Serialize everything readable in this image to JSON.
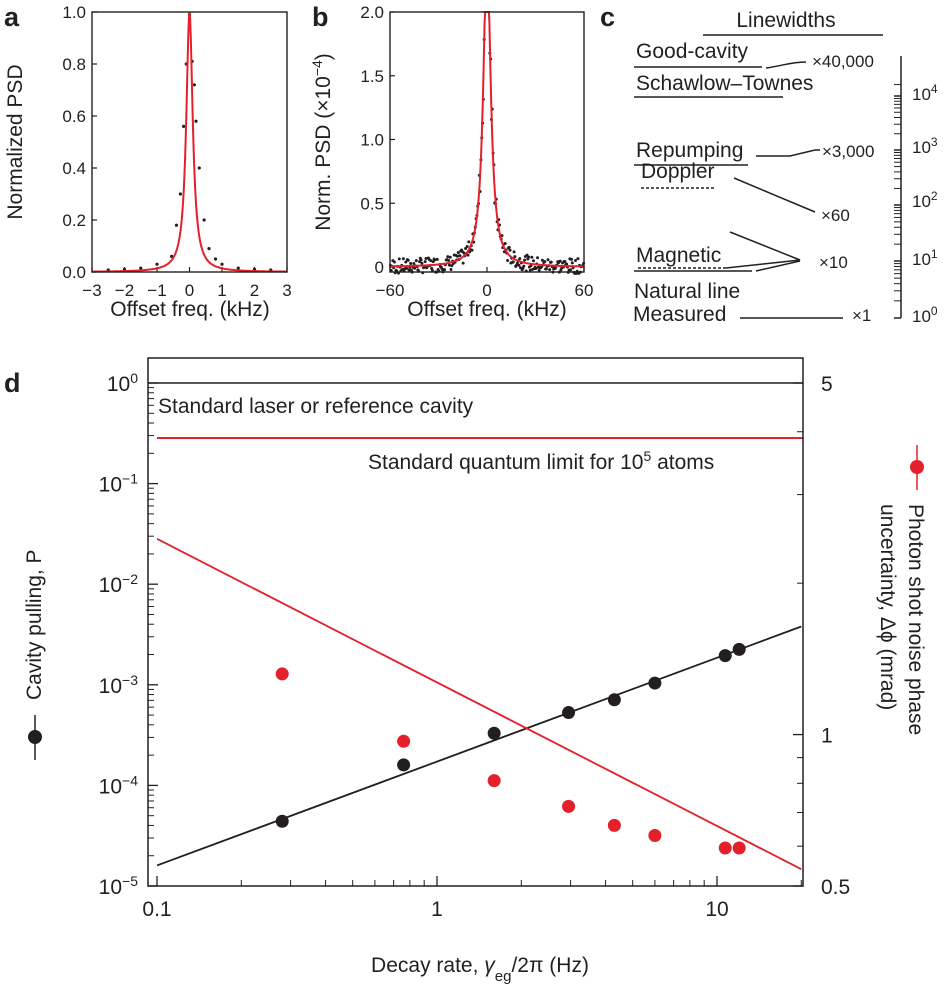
{
  "panel_labels": {
    "a": "a",
    "b": "b",
    "c": "c",
    "d": "d"
  },
  "colors": {
    "fit": "#e4202a",
    "data": "#231f20"
  },
  "chart_data": [
    {
      "type": "line",
      "panel": "a",
      "xlabel": "Offset freq. (kHz)",
      "ylabel": "Normalized PSD",
      "xlim": [
        -3,
        3
      ],
      "ylim": [
        0,
        1.0
      ],
      "xticks": [
        "−3",
        "−2",
        "−1",
        "0",
        "1",
        "2",
        "3"
      ],
      "yticks": [
        "0.0",
        "0.2",
        "0.4",
        "0.6",
        "0.8",
        "1.0"
      ],
      "series": [
        {
          "kind": "points",
          "x": [
            -0.55,
            -0.4,
            -0.28,
            -0.18,
            -0.1,
            0.0,
            0.08,
            0.15,
            0.2,
            0.3,
            0.45,
            0.6,
            0.8,
            1.0,
            1.5,
            -1.0,
            -1.5,
            -2.0,
            2.0,
            -2.5,
            2.5
          ],
          "y": [
            0.06,
            0.18,
            0.3,
            0.56,
            0.8,
            0.99,
            0.81,
            0.72,
            0.58,
            0.4,
            0.2,
            0.09,
            0.05,
            0.03,
            0.015,
            0.03,
            0.015,
            0.01,
            0.01,
            0.008,
            0.008
          ]
        },
        {
          "kind": "fit",
          "shape": "lorentzian",
          "center": 0,
          "fwhm": 0.24,
          "peak": 1.0
        }
      ]
    },
    {
      "type": "line",
      "panel": "b",
      "xlabel": "Offset freq. (kHz)",
      "ylabel": "Norm. PSD (×10",
      "ylabel_sup": "−4",
      "ylabel_end": ")",
      "xlim": [
        -60,
        60
      ],
      "ylim": [
        0,
        2.0
      ],
      "xticks": [
        "−60",
        "0",
        "60"
      ],
      "yticks": [
        "0",
        "0.5",
        "1.0",
        "1.5",
        "2.0"
      ],
      "series": [
        {
          "kind": "points",
          "noisy_lorentzian": true,
          "center": 0,
          "fwhm": 5.4,
          "peak": 2.5,
          "n": 240
        },
        {
          "kind": "fit",
          "shape": "lorentzian",
          "center": 0,
          "fwhm": 5.4,
          "peak": 2.5
        }
      ]
    },
    {
      "type": "diagram",
      "panel": "c",
      "title": "Linewidths",
      "items": [
        "Good-cavity",
        "Schawlow–Townes",
        "Repumping",
        "Doppler",
        "Magnetic",
        "Natural line",
        "Measured"
      ],
      "ratios": [
        "×40,000",
        "×3,000",
        "×60",
        "×10",
        "×1"
      ],
      "axis_ticks": [
        "10",
        "10",
        "10",
        "10",
        "10"
      ],
      "axis_exps": [
        "4",
        "3",
        "2",
        "1",
        "0"
      ]
    },
    {
      "type": "scatter",
      "panel": "d",
      "xlabel_pre": "Decay rate, ",
      "xlabel_sym": "γ",
      "xlabel_sub": "eg",
      "xlabel_post": "/2π (Hz)",
      "ylabel_left": "Cavity pulling, P",
      "ylabel_right_1": "Photon shot noise phase",
      "ylabel_right_2": "uncertainty, Δϕ (mrad)",
      "x_scale": "log",
      "xlim": [
        0.1,
        20
      ],
      "y_left_scale": "log",
      "y_left_lim": [
        1e-05,
        1
      ],
      "y_right_scale": "log",
      "y_right_lim": [
        0.5,
        5
      ],
      "xticks": [
        "0.1",
        "1",
        "10"
      ],
      "yticks_left_base": "10",
      "yticks_left_exp": [
        "−5",
        "−4",
        "−3",
        "−2",
        "−1",
        "0"
      ],
      "yticks_right": [
        "0.5",
        "1",
        "5"
      ],
      "hlines": [
        {
          "label": "Standard laser or reference cavity",
          "axis": "left",
          "y": 1.0,
          "color": "#231f20"
        },
        {
          "label": "Standard quantum limit for 10",
          "label_sup": "5",
          "label_end": " atoms",
          "axis": "right",
          "y": 3.5,
          "color": "#e4202a"
        }
      ],
      "series": [
        {
          "name": "Cavity pulling, P",
          "axis": "left",
          "color": "#231f20",
          "x": [
            0.28,
            0.76,
            1.6,
            2.95,
            4.3,
            6.0,
            10.7,
            12.0
          ],
          "y": [
            4.4e-05,
            0.00016,
            0.00033,
            0.00053,
            0.00071,
            0.00104,
            0.00195,
            0.00225
          ],
          "fit": {
            "x": [
              0.1,
              20
            ],
            "y": [
              1.6e-05,
              0.0038
            ]
          }
        },
        {
          "name": "Photon shot noise phase uncertainty",
          "axis": "right",
          "color": "#e4202a",
          "x": [
            0.28,
            0.76,
            1.6,
            2.95,
            4.3,
            6.0,
            10.7,
            12.0
          ],
          "y": [
            1.32,
            0.97,
            0.81,
            0.72,
            0.66,
            0.63,
            0.595,
            0.595
          ],
          "fit": {
            "x": [
              0.1,
              20
            ],
            "y": [
              2.45,
              0.54
            ]
          }
        }
      ]
    }
  ]
}
